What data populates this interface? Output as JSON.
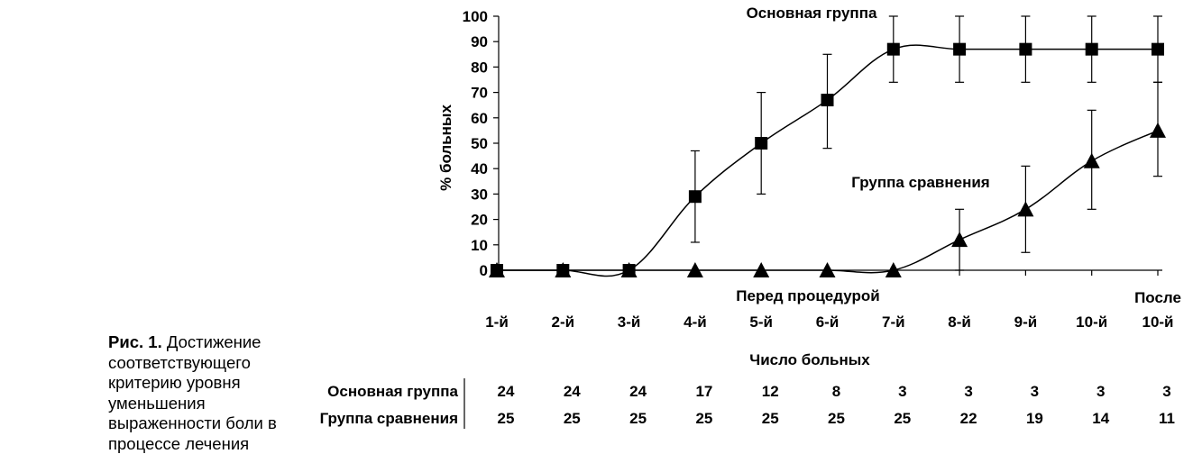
{
  "caption": {
    "label": "Рис. 1.",
    "text": "Достижение соответству­ющего критерию уровня уменьше­ния выраженности боли в процессе лечения"
  },
  "chart_data": {
    "type": "line",
    "ylabel": "% больных",
    "ylim": [
      0,
      100
    ],
    "yticks": [
      0,
      10,
      20,
      30,
      40,
      50,
      60,
      70,
      80,
      90,
      100
    ],
    "categories": [
      "1-й",
      "2-й",
      "3-й",
      "4-й",
      "5-й",
      "6-й",
      "7-й",
      "8-й",
      "9-й",
      "10-й",
      "10-й"
    ],
    "category_top_labels": [
      "",
      "",
      "",
      "",
      "",
      "",
      "",
      "",
      "",
      "",
      "После"
    ],
    "annotations": {
      "before_procedure": "Перед процедурой"
    },
    "series": [
      {
        "name": "Основная группа",
        "marker": "square",
        "values": [
          0,
          0,
          0,
          29,
          50,
          67,
          87,
          87,
          87,
          87,
          87
        ],
        "err_low": [
          0,
          0,
          0,
          11,
          30,
          48,
          74,
          74,
          74,
          74,
          74
        ],
        "err_high": [
          0,
          0,
          0,
          47,
          70,
          85,
          100,
          100,
          100,
          100,
          100
        ]
      },
      {
        "name": "Группа сравнения",
        "marker": "triangle",
        "values": [
          0,
          0,
          0,
          0,
          0,
          0,
          0,
          12,
          24,
          43,
          55
        ],
        "err_low": [
          0,
          0,
          0,
          0,
          0,
          0,
          0,
          0,
          7,
          24,
          37
        ],
        "err_high": [
          0,
          0,
          0,
          0,
          0,
          0,
          0,
          24,
          41,
          63,
          74
        ]
      }
    ],
    "table": {
      "title": "Число больных",
      "rows": [
        {
          "name": "Основная группа",
          "values": [
            "24",
            "24",
            "24",
            "17",
            "12",
            "8",
            "3",
            "3",
            "3",
            "3",
            "3"
          ]
        },
        {
          "name": "Группа сравнения",
          "values": [
            "25",
            "25",
            "25",
            "25",
            "25",
            "25",
            "25",
            "22",
            "19",
            "14",
            "11"
          ]
        }
      ]
    }
  }
}
